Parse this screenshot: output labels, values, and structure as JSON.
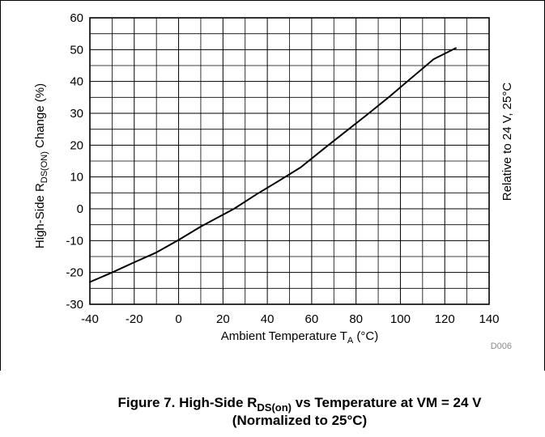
{
  "chart_data": {
    "type": "line",
    "title": "Figure 7. High-Side R_DS(on) vs Temperature at VM = 24 V (Normalized to 25°C)",
    "caption": {
      "line1_prefix": "Figure 7. High-Side R",
      "line1_sub": "DS(on)",
      "line1_suffix": " vs Temperature at VM = 24 V",
      "line2": "(Normalized to 25°C)"
    },
    "xlabel": {
      "text": "Ambient Temperature T",
      "sub": "A",
      "suffix": " (°C)"
    },
    "ylabel": {
      "text": "High-Side R",
      "sub": "DS(ON)",
      "suffix": " Change (%)"
    },
    "right_label": "Relative to 24 V, 25°C",
    "figure_id": "D006",
    "xlim": [
      -40,
      140
    ],
    "ylim": [
      -30,
      60
    ],
    "x_major_ticks": [
      -40,
      -20,
      0,
      20,
      40,
      60,
      80,
      100,
      120,
      140
    ],
    "y_major_ticks": [
      -30,
      -20,
      -10,
      0,
      10,
      20,
      30,
      40,
      50,
      60
    ],
    "grid": true,
    "series": [
      {
        "x": [
          -40,
          -30,
          -20,
          -10,
          0,
          10,
          25,
          35,
          45,
          55,
          65,
          75,
          85,
          95,
          105,
          115,
          125
        ],
        "y": [
          -23,
          -20.0,
          -16.8,
          -13.7,
          -9.8,
          -5.6,
          0,
          4.5,
          8.7,
          13.0,
          18.6,
          24.1,
          29.6,
          35.2,
          41.1,
          47.0,
          50.5
        ]
      }
    ]
  }
}
